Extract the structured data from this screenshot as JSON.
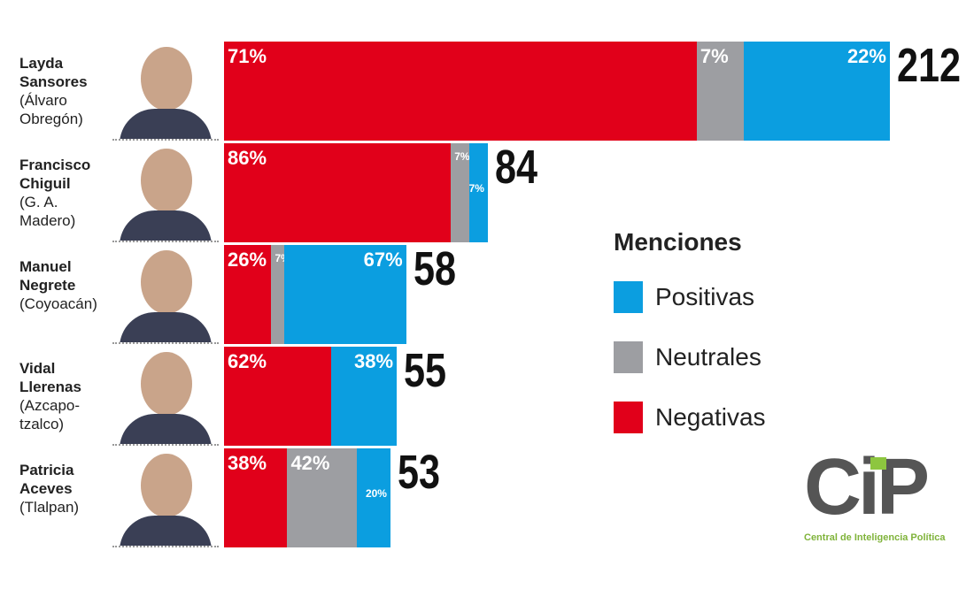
{
  "chart_data": {
    "type": "bar",
    "categories": [
      "Layda Sansores",
      "Francisco Chiguil",
      "Manuel Negrete",
      "Vidal Llerenas",
      "Patricia Aceves"
    ],
    "districts": [
      "(Álvaro Obregón)",
      "(G. A. Madero)",
      "(Coyoacán)",
      "(Azcapo-tzalco)",
      "(Tlalpan)"
    ],
    "totals": [
      212,
      84,
      58,
      55,
      53
    ],
    "series": [
      {
        "name": "Negativas",
        "color": "#e1001a",
        "values": [
          71,
          86,
          26,
          62,
          38
        ],
        "value_labels": [
          "71%",
          "86%",
          "26%",
          "62%",
          "38%"
        ]
      },
      {
        "name": "Neutrales",
        "color": "#9d9ea2",
        "values": [
          7,
          7,
          7,
          null,
          42
        ],
        "value_labels": [
          "7%",
          "7%",
          "7%",
          null,
          "42%"
        ]
      },
      {
        "name": "Positivas",
        "color": "#0b9ee0",
        "values": [
          22,
          7,
          67,
          38,
          20
        ],
        "value_labels": [
          "22%",
          "7%",
          "67%",
          "38%",
          "20%"
        ]
      }
    ],
    "legend_title": "Menciones",
    "logo": {
      "text": "CiP",
      "subtitle": "Central de Inteligencia Política"
    }
  }
}
